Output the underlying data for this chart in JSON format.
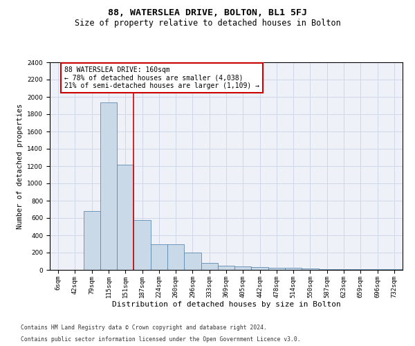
{
  "title_line1": "88, WATERSLEA DRIVE, BOLTON, BL1 5FJ",
  "title_line2": "Size of property relative to detached houses in Bolton",
  "xlabel": "Distribution of detached houses by size in Bolton",
  "ylabel": "Number of detached properties",
  "bin_labels": [
    "6sqm",
    "42sqm",
    "79sqm",
    "115sqm",
    "151sqm",
    "187sqm",
    "224sqm",
    "260sqm",
    "296sqm",
    "333sqm",
    "369sqm",
    "405sqm",
    "442sqm",
    "478sqm",
    "514sqm",
    "550sqm",
    "587sqm",
    "623sqm",
    "659sqm",
    "696sqm",
    "732sqm"
  ],
  "bar_heights": [
    0,
    0,
    680,
    1940,
    1220,
    580,
    300,
    300,
    200,
    80,
    50,
    40,
    35,
    25,
    25,
    15,
    10,
    10,
    5,
    5,
    5
  ],
  "bar_color": "#c9d9e8",
  "bar_edge_color": "#5a8ab0",
  "grid_color": "#d0d8e8",
  "bg_color": "#eef2f8",
  "vline_x_index": 4.5,
  "vline_color": "#cc0000",
  "annotation_text": "88 WATERSLEA DRIVE: 160sqm\n← 78% of detached houses are smaller (4,038)\n21% of semi-detached houses are larger (1,109) →",
  "annotation_box_color": "#cc0000",
  "ylim": [
    0,
    2400
  ],
  "yticks": [
    0,
    200,
    400,
    600,
    800,
    1000,
    1200,
    1400,
    1600,
    1800,
    2000,
    2200,
    2400
  ],
  "footnote1": "Contains HM Land Registry data © Crown copyright and database right 2024.",
  "footnote2": "Contains public sector information licensed under the Open Government Licence v3.0.",
  "title_fontsize": 9.5,
  "subtitle_fontsize": 8.5,
  "xlabel_fontsize": 8,
  "ylabel_fontsize": 7.5,
  "tick_fontsize": 6.5,
  "annotation_fontsize": 7,
  "footnote_fontsize": 5.8
}
